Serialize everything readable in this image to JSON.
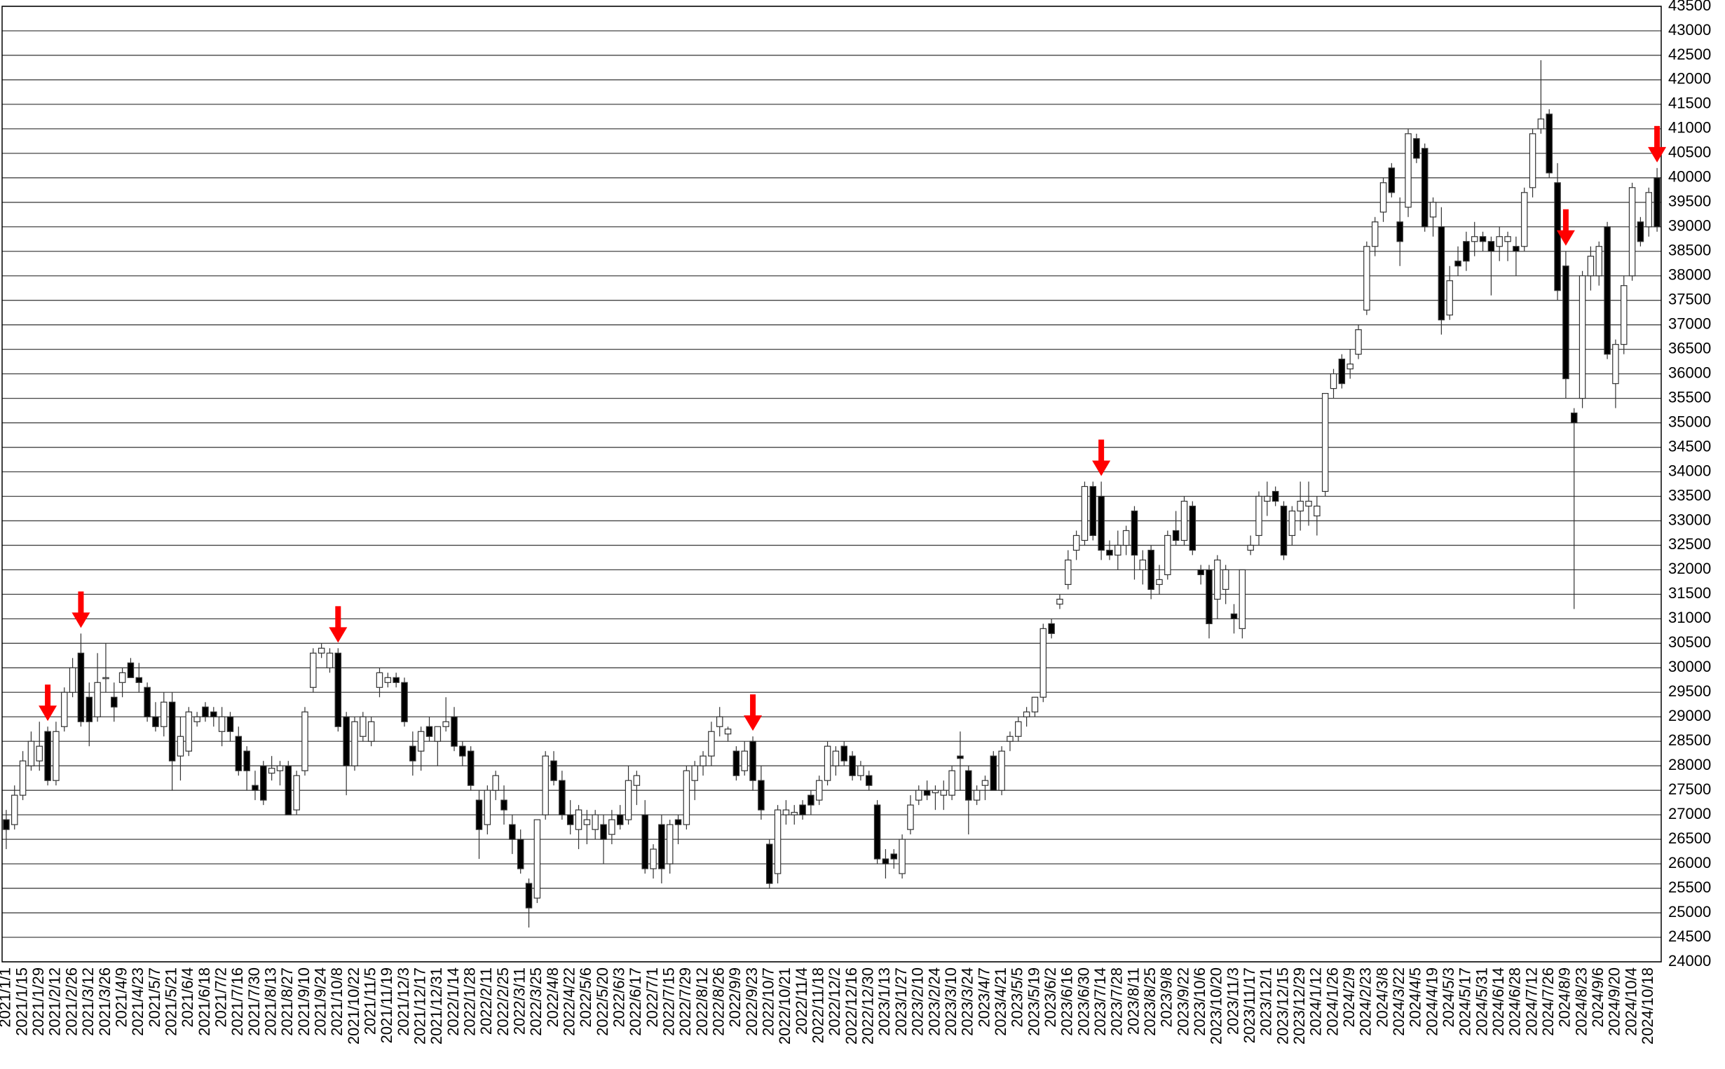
{
  "chart_data": {
    "type": "candlestick",
    "categories": [
      "2021/1/1",
      null,
      "2021/1/15",
      null,
      "2021/1/29",
      null,
      "2021/2/12",
      null,
      "2021/2/26",
      null,
      "2021/3/12",
      null,
      "2021/3/26",
      null,
      "2021/4/9",
      null,
      "2021/4/23",
      null,
      "2021/5/7",
      null,
      "2021/5/21",
      null,
      "2021/6/4",
      null,
      "2021/6/18",
      null,
      "2021/7/2",
      null,
      "2021/7/16",
      null,
      "2021/7/30",
      null,
      "2021/8/13",
      null,
      "2021/8/27",
      null,
      "2021/9/10",
      null,
      "2021/9/24",
      null,
      "2021/10/8",
      null,
      "2021/10/22",
      null,
      "2021/11/5",
      null,
      "2021/11/19",
      null,
      "2021/12/3",
      null,
      "2021/12/17",
      null,
      "2021/12/31",
      null,
      "2022/1/14",
      null,
      "2022/1/28",
      null,
      "2022/2/11",
      null,
      "2022/2/25",
      null,
      "2022/3/11",
      null,
      "2022/3/25",
      null,
      "2022/4/8",
      null,
      "2022/4/22",
      null,
      "2022/5/6",
      null,
      "2022/5/20",
      null,
      "2022/6/3",
      null,
      "2022/6/17",
      null,
      "2022/7/1",
      null,
      "2022/7/15",
      null,
      "2022/7/29",
      null,
      "2022/8/12",
      null,
      "2022/8/26",
      null,
      "2022/9/9",
      null,
      "2022/9/23",
      null,
      "2022/10/7",
      null,
      "2022/10/21",
      null,
      "2022/11/4",
      null,
      "2022/11/18",
      null,
      "2022/12/2",
      null,
      "2022/12/16",
      null,
      "2022/12/30",
      null,
      "2023/1/13",
      null,
      "2023/1/27",
      null,
      "2023/2/10",
      null,
      "2023/2/24",
      null,
      "2023/3/10",
      null,
      "2023/3/24",
      null,
      "2023/4/7",
      null,
      "2023/4/21",
      null,
      "2023/5/5",
      null,
      "2023/5/19",
      null,
      "2023/6/2",
      null,
      "2023/6/16",
      null,
      "2023/6/30",
      null,
      "2023/7/14",
      null,
      "2023/7/28",
      null,
      "2023/8/11",
      null,
      "2023/8/25",
      null,
      "2023/9/8",
      null,
      "2023/9/22",
      null,
      "2023/10/6",
      null,
      "2023/10/20",
      null,
      "2023/11/3",
      null,
      "2023/11/17",
      null,
      "2023/12/1",
      null,
      "2023/12/15",
      null,
      "2023/12/29",
      null,
      "2024/1/12",
      null,
      "2024/1/26",
      null,
      "2024/2/9",
      null,
      "2024/2/23",
      null,
      "2024/3/8",
      null,
      "2024/3/22",
      null,
      "2024/4/5",
      null,
      "2024/4/19",
      null,
      "2024/5/3",
      null,
      "2024/5/17",
      null,
      "2024/5/31",
      null,
      "2024/6/14",
      null,
      "2024/6/28",
      null,
      "2024/7/12",
      null,
      "2024/7/26",
      null,
      "2024/8/9",
      null,
      "2024/8/23",
      null,
      "2024/9/6",
      null,
      "2024/9/20",
      null,
      "2024/10/4",
      null,
      "2024/10/18",
      null
    ],
    "open": [
      26900,
      26800,
      27400,
      28000,
      28100,
      28700,
      27700,
      28800,
      29500,
      30300,
      29400,
      29000,
      29800,
      29400,
      29700,
      30100,
      29800,
      29600,
      29000,
      28800,
      29300,
      28200,
      28300,
      28900,
      29200,
      29100,
      28700,
      29000,
      28600,
      28300,
      27600,
      28000,
      27850,
      27900,
      28000,
      27100,
      27900,
      29600,
      30300,
      30000,
      30300,
      29000,
      28000,
      28600,
      28500,
      29600,
      29700,
      29800,
      29700,
      28400,
      28300,
      28800,
      28500,
      28800,
      29000,
      28400,
      28300,
      27300,
      26800,
      27500,
      27300,
      26800,
      26500,
      25600,
      25300,
      27000,
      28100,
      27700,
      27000,
      26700,
      26800,
      26700,
      26800,
      26600,
      27000,
      26900,
      27600,
      27000,
      25900,
      26800,
      26000,
      26900,
      26800,
      27700,
      28000,
      28200,
      28800,
      28650,
      28300,
      27900,
      28500,
      27700,
      26400,
      25800,
      27000,
      27000,
      27200,
      27400,
      27300,
      27700,
      28000,
      28400,
      28200,
      27800,
      27800,
      27200,
      26100,
      26200,
      25800,
      26700,
      27300,
      27500,
      27450,
      27400,
      27400,
      28200,
      27900,
      27300,
      27600,
      28200,
      27500,
      28500,
      28600,
      29000,
      29100,
      29400,
      30900,
      31300,
      31700,
      32400,
      32600,
      33700,
      33500,
      32400,
      32300,
      32500,
      33200,
      32000,
      32400,
      31700,
      31900,
      32800,
      32600,
      33300,
      32000,
      32000,
      31400,
      31600,
      31100,
      30800,
      32400,
      32700,
      33400,
      33600,
      33300,
      32700,
      33200,
      33300,
      33100,
      33600,
      35700,
      36300,
      36100,
      36400,
      37300,
      38600,
      39300,
      40200,
      39100,
      39400,
      40800,
      40600,
      39200,
      39000,
      37200,
      38300,
      38700,
      38700,
      38800,
      38700,
      38600,
      38700,
      38600,
      38600,
      39800,
      41000,
      41300,
      39900,
      38200,
      35200,
      35500,
      38000,
      38000,
      39000,
      35800,
      36600,
      38000,
      39100,
      39000,
      40000
    ],
    "high": [
      27100,
      27600,
      28300,
      28700,
      28900,
      28800,
      28900,
      29600,
      30200,
      30700,
      29700,
      30300,
      30500,
      29700,
      30000,
      30200,
      30100,
      29700,
      29300,
      29500,
      29500,
      29000,
      29200,
      29100,
      29300,
      29200,
      29200,
      29100,
      28800,
      28400,
      27900,
      28100,
      28200,
      28100,
      28100,
      27900,
      29200,
      30400,
      30500,
      30400,
      30400,
      29100,
      29000,
      29100,
      29000,
      30000,
      29900,
      29900,
      29800,
      28700,
      28800,
      29000,
      28800,
      29400,
      29200,
      28500,
      28400,
      27500,
      27600,
      27900,
      27600,
      27000,
      26700,
      25700,
      26900,
      28300,
      28300,
      27900,
      27300,
      27200,
      27100,
      27100,
      27000,
      27100,
      27200,
      28000,
      27900,
      27300,
      26400,
      27000,
      26900,
      27000,
      28000,
      28100,
      28300,
      28900,
      29200,
      28800,
      28400,
      28500,
      28600,
      28000,
      26500,
      27200,
      27300,
      27200,
      27300,
      27500,
      27800,
      28500,
      28400,
      28500,
      28300,
      28100,
      27900,
      27300,
      26300,
      26300,
      26600,
      27400,
      27600,
      27700,
      27600,
      27700,
      28000,
      28700,
      28000,
      27600,
      27800,
      28300,
      28400,
      28700,
      29000,
      29200,
      29400,
      30900,
      31000,
      31500,
      32400,
      32800,
      33800,
      33800,
      33800,
      32600,
      32800,
      32900,
      33300,
      32400,
      32500,
      32100,
      32800,
      33200,
      33500,
      33400,
      32100,
      32100,
      32300,
      32100,
      31300,
      32000,
      32700,
      33600,
      33800,
      33700,
      33400,
      33300,
      33800,
      33800,
      33500,
      35600,
      36100,
      36400,
      36500,
      37000,
      38700,
      39200,
      40000,
      40300,
      39600,
      41000,
      40900,
      40700,
      39600,
      39400,
      38200,
      38600,
      38900,
      39100,
      38900,
      38800,
      39000,
      38900,
      38800,
      39800,
      41000,
      42400,
      41400,
      40300,
      38500,
      35300,
      38100,
      38600,
      38700,
      39100,
      36700,
      38000,
      39900,
      39200,
      39800,
      40200
    ],
    "low": [
      26300,
      26700,
      27300,
      27900,
      27900,
      27600,
      27600,
      28700,
      29400,
      28800,
      28400,
      28900,
      29500,
      28900,
      29400,
      29800,
      29500,
      28900,
      28700,
      28600,
      27500,
      27700,
      28200,
      28800,
      28900,
      28800,
      28400,
      28500,
      27800,
      27500,
      27300,
      27200,
      27700,
      27600,
      27000,
      27000,
      27800,
      29500,
      30200,
      29900,
      28700,
      27400,
      27900,
      28500,
      28400,
      29400,
      29600,
      29600,
      28800,
      27800,
      27900,
      28500,
      28000,
      28700,
      28300,
      28000,
      27500,
      26100,
      26600,
      27300,
      26800,
      26200,
      25800,
      24700,
      25200,
      26900,
      27600,
      26900,
      26600,
      26300,
      26400,
      26500,
      26000,
      26400,
      26700,
      26800,
      27200,
      25800,
      25700,
      25600,
      25800,
      26400,
      26700,
      27300,
      27800,
      28000,
      28600,
      28500,
      27700,
      27800,
      27500,
      26900,
      25500,
      25600,
      26800,
      26800,
      26900,
      27000,
      27200,
      27600,
      27800,
      28000,
      27700,
      27700,
      27500,
      26000,
      25700,
      25900,
      25700,
      26600,
      27200,
      27300,
      27100,
      27100,
      27300,
      27500,
      26600,
      27200,
      27300,
      27500,
      27400,
      28300,
      28500,
      28800,
      29000,
      29300,
      30600,
      31200,
      31600,
      32200,
      32500,
      32600,
      32200,
      32200,
      32000,
      32300,
      31800,
      31700,
      31400,
      31500,
      31800,
      32500,
      32500,
      32300,
      31700,
      30600,
      31000,
      31300,
      30700,
      30600,
      32300,
      32500,
      33100,
      33300,
      32200,
      32500,
      32800,
      32900,
      32700,
      33500,
      35500,
      35700,
      35900,
      36300,
      37200,
      38400,
      39100,
      39600,
      38200,
      39200,
      40300,
      38900,
      38800,
      36800,
      37100,
      38000,
      38100,
      38400,
      38500,
      37600,
      38300,
      38300,
      38000,
      38500,
      39600,
      40900,
      40000,
      37500,
      35500,
      31200,
      35300,
      37700,
      37800,
      36300,
      35300,
      36400,
      37900,
      38600,
      38800,
      38900
    ],
    "close": [
      26700,
      27400,
      28100,
      28500,
      28400,
      27700,
      28700,
      29500,
      30000,
      28900,
      28900,
      29700,
      29800,
      29200,
      29900,
      29800,
      29700,
      29000,
      28800,
      29300,
      28100,
      28600,
      29100,
      29000,
      29000,
      29000,
      29000,
      28700,
      27900,
      27900,
      27500,
      27300,
      27950,
      28000,
      27000,
      27800,
      29100,
      30300,
      30400,
      30300,
      28800,
      28000,
      28900,
      29000,
      28900,
      29900,
      29800,
      29700,
      28900,
      28100,
      28700,
      28600,
      28800,
      28900,
      28400,
      28200,
      27600,
      26700,
      27500,
      27800,
      27100,
      26500,
      25900,
      25100,
      26900,
      28200,
      27700,
      27000,
      26800,
      27100,
      26900,
      27000,
      26500,
      26900,
      26800,
      27700,
      27800,
      25900,
      26300,
      25900,
      26800,
      26800,
      27900,
      28000,
      28200,
      28700,
      29000,
      28750,
      27800,
      28300,
      27700,
      27100,
      25600,
      27100,
      27100,
      27050,
      27000,
      27200,
      27700,
      28400,
      28300,
      28100,
      27800,
      28000,
      27600,
      26100,
      26000,
      26100,
      26500,
      27200,
      27500,
      27400,
      27500,
      27500,
      27900,
      28150,
      27300,
      27500,
      27700,
      27500,
      28300,
      28600,
      28900,
      29100,
      29400,
      30800,
      30700,
      31400,
      32200,
      32700,
      33700,
      32700,
      32400,
      32300,
      32500,
      32800,
      32300,
      32200,
      31600,
      31800,
      32700,
      32600,
      33400,
      32400,
      31900,
      30900,
      32200,
      32000,
      31000,
      32000,
      32500,
      33500,
      33500,
      33400,
      32300,
      33200,
      33400,
      33400,
      33300,
      35600,
      36000,
      35800,
      36200,
      36900,
      38600,
      39100,
      39900,
      39700,
      38700,
      40900,
      40400,
      39000,
      39500,
      37100,
      37900,
      38200,
      38300,
      38800,
      38700,
      38500,
      38800,
      38800,
      38500,
      39700,
      40900,
      41200,
      40100,
      37700,
      35900,
      35000,
      38000,
      38400,
      38600,
      36400,
      36600,
      37800,
      39800,
      38700,
      39700,
      39000
    ],
    "ylim": [
      24000,
      43500
    ],
    "yticks": [
      24000,
      24500,
      25000,
      25500,
      26000,
      26500,
      27000,
      27500,
      28000,
      28500,
      29000,
      29500,
      30000,
      30500,
      31000,
      31500,
      32000,
      32500,
      33000,
      33500,
      34000,
      34500,
      35000,
      35500,
      36000,
      36500,
      37000,
      37500,
      38000,
      38500,
      39000,
      39500,
      40000,
      40500,
      41000,
      41500,
      42000,
      42500,
      43000,
      43500
    ],
    "grid": true,
    "up_color": "#ffffff",
    "down_color": "#000000",
    "arrow_color": "#ff0000",
    "arrows": [
      5,
      9,
      40,
      90,
      132,
      188,
      199
    ]
  }
}
